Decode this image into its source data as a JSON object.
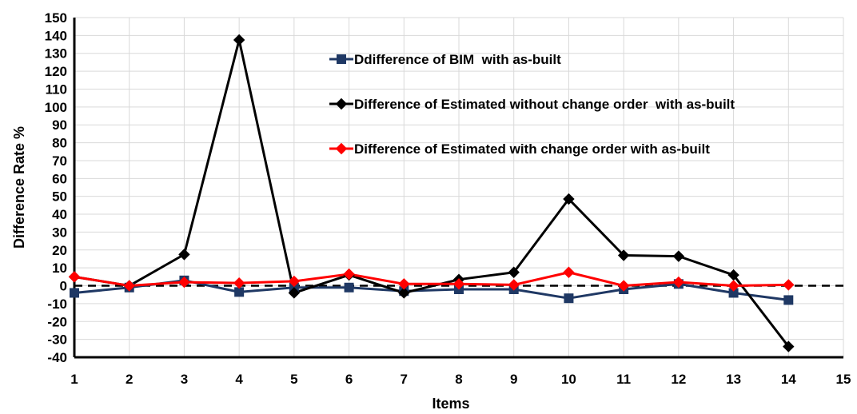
{
  "chart_data": {
    "type": "line",
    "xlabel": "Items",
    "ylabel": "Difference Rate %",
    "xlim": [
      1,
      15
    ],
    "ylim": [
      -40,
      150
    ],
    "xticks": [
      1,
      2,
      3,
      4,
      5,
      6,
      7,
      8,
      9,
      10,
      11,
      12,
      13,
      14,
      15
    ],
    "yticks": [
      -40,
      -30,
      -20,
      -10,
      0,
      10,
      20,
      30,
      40,
      50,
      60,
      70,
      80,
      90,
      100,
      110,
      120,
      130,
      140,
      150
    ],
    "grid": true,
    "legend_position": "top-right",
    "reference_line": {
      "y": 0,
      "style": "dashed",
      "color": "#000000"
    },
    "x": [
      1,
      2,
      3,
      4,
      5,
      6,
      7,
      8,
      9,
      10,
      11,
      12,
      13,
      14
    ],
    "series": [
      {
        "name": "Ddifference of BIM  with as-built",
        "color": "#1F3864",
        "marker": "square",
        "values": [
          -4,
          -1,
          3,
          -3.5,
          -1,
          -1,
          -3,
          -2,
          -2,
          -7,
          -2,
          1,
          -4,
          -8
        ]
      },
      {
        "name": "Difference of Estimated without change order  with as-built",
        "color": "#000000",
        "marker": "diamond",
        "values": [
          5,
          0,
          17.5,
          137.5,
          -4,
          6,
          -4,
          3.5,
          7.5,
          48.5,
          17,
          16.5,
          6,
          -34
        ]
      },
      {
        "name": "Difference of Estimated with change order with as-built",
        "color": "#FF0000",
        "marker": "diamond",
        "values": [
          5,
          0,
          2,
          1.5,
          2.5,
          6.5,
          1,
          1,
          0.5,
          7.5,
          0,
          2,
          0,
          0.5
        ]
      }
    ]
  }
}
